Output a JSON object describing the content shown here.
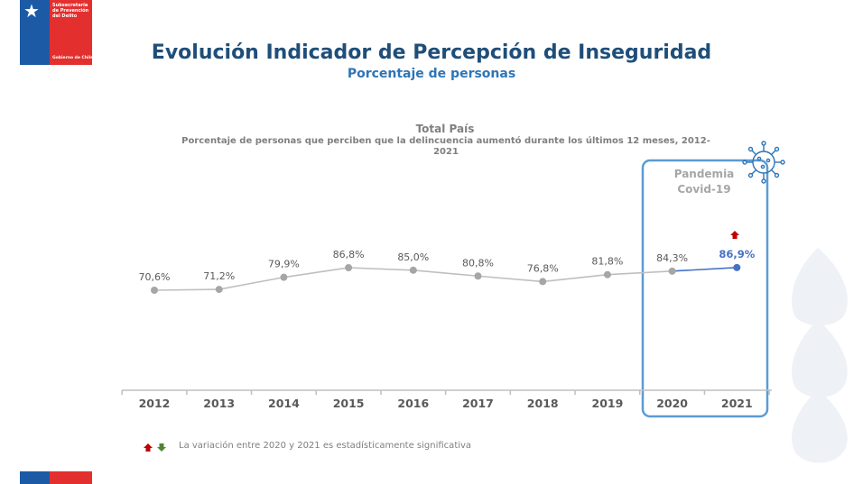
{
  "header": {
    "logo_text": "Subsecretaría de Prevención del Delito",
    "logo_footer": "Gobierno de Chile",
    "title": "Evolución Indicador de Percepción de Inseguridad",
    "subtitle": "Porcentaje de personas"
  },
  "chart_data": {
    "type": "line",
    "title": "Total País",
    "subtitle": "Porcentaje de personas que perciben que la delincuencia aumentó durante los últimos 12 meses, 2012-2021",
    "categories": [
      "2012",
      "2013",
      "2014",
      "2015",
      "2016",
      "2017",
      "2018",
      "2019",
      "2020",
      "2021"
    ],
    "series": [
      {
        "values": [
          70.6,
          71.2,
          79.9,
          86.8,
          85.0,
          80.8,
          76.8,
          81.8,
          84.3,
          86.9
        ],
        "labels": [
          "70,6%",
          "71,2%",
          "79,9%",
          "86,8%",
          "85,0%",
          "80,8%",
          "76,8%",
          "81,8%",
          "84,3%",
          "86,9%"
        ]
      }
    ],
    "xlabel": "",
    "ylabel": "",
    "highlight": {
      "label": "Pandemia Covid-19",
      "categories": [
        "2020",
        "2021"
      ],
      "icon": "virus-icon"
    },
    "significant_change_marker": {
      "category": "2021",
      "direction": "up"
    },
    "grid": false,
    "colors": {
      "line": "#bfbfbf",
      "point": "#a6a6a6",
      "highlight_point": "#4472c4",
      "highlight_box": "#5b9bd5",
      "up_arrow": "#c00000",
      "down_arrow": "#548235"
    }
  },
  "footnote": {
    "text": "La variación entre 2020 y 2021 es estadísticamente significativa"
  }
}
